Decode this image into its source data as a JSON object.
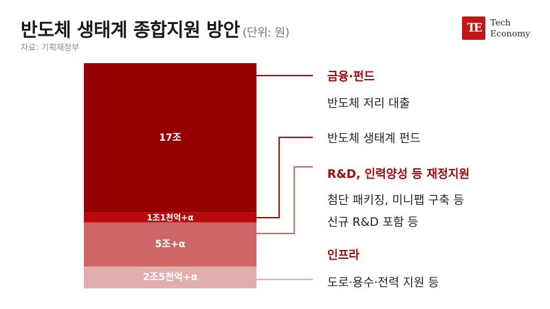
{
  "header": {
    "title": "반도체 생태계 종합지원 방안",
    "unit": "(단위: 원)",
    "source": "자료: 기획재정부"
  },
  "logo": {
    "mark": "TE",
    "line1": "Tech",
    "line2": "Economy"
  },
  "colors": {
    "band1": "#960000",
    "band2": "#b80a0a",
    "band3": "#cd6767",
    "band4": "#e2adad",
    "line_dark": "#a01414",
    "line_mid": "#c96a6a",
    "line_light": "#e2adad",
    "heading": "#9b0c0c"
  },
  "chart_data": {
    "type": "stacked_bar",
    "unit": "원",
    "segments": [
      {
        "label": "17조",
        "value": 17.0,
        "color": "#960000"
      },
      {
        "label": "1조1천억+α",
        "value": 1.1,
        "color": "#b80a0a"
      },
      {
        "label": "5조+α",
        "value": 5.0,
        "color": "#cd6767"
      },
      {
        "label": "2조5천억+α",
        "value": 2.5,
        "color": "#e2adad"
      }
    ]
  },
  "legend": {
    "finance_heading": "금융·펀드",
    "finance_item1": "반도체 저리 대출",
    "finance_item2": "반도체 생태계 펀드",
    "rnd_heading": "R&D, 인력양성 등 재정지원",
    "rnd_item1": "첨단 패키징, 미니팹 구축 등",
    "rnd_item2": "신규 R&D 포함 등",
    "infra_heading": "인프라",
    "infra_item1": "도로·용수·전력 지원 등"
  }
}
